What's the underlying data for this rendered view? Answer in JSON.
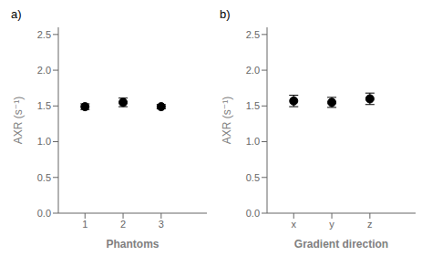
{
  "chart_data": [
    {
      "type": "scatter",
      "title": "a)",
      "xlabel": "Phantoms",
      "ylabel": "AXR (s⁻¹)",
      "x": [
        1,
        2,
        3
      ],
      "values": [
        1.49,
        1.55,
        1.49
      ],
      "errors": [
        0.04,
        0.06,
        0.03
      ],
      "color": "#000000",
      "xlim": [
        0.3,
        4.2
      ],
      "xticks": [
        1,
        2,
        3
      ],
      "ylim": [
        0.0,
        2.6
      ],
      "yticks": [
        {
          "value": 0.0,
          "label": "0.0"
        },
        0.5,
        {
          "value": 1.0,
          "label": "1.0"
        },
        1.5,
        {
          "value": 2.0,
          "label": "2.0"
        },
        2.5
      ]
    },
    {
      "type": "scatter",
      "title": "b)",
      "xlabel": "Gradient direction",
      "ylabel": "AXR (s⁻¹)",
      "x": [
        1,
        2,
        3
      ],
      "values": [
        1.57,
        1.55,
        1.6
      ],
      "errors": [
        0.08,
        0.07,
        0.08
      ],
      "color": "#000000",
      "xlim": [
        0.3,
        4.2
      ],
      "xticks": [
        {
          "value": 1,
          "label": "x"
        },
        {
          "value": 2,
          "label": "y"
        },
        {
          "value": 3,
          "label": "z"
        }
      ],
      "ylim": [
        0.0,
        2.6
      ],
      "yticks": [
        {
          "value": 0.0,
          "label": "0.0"
        },
        0.5,
        {
          "value": 1.0,
          "label": "1.0"
        },
        1.5,
        {
          "value": 2.0,
          "label": "2.0"
        },
        2.5
      ]
    }
  ]
}
